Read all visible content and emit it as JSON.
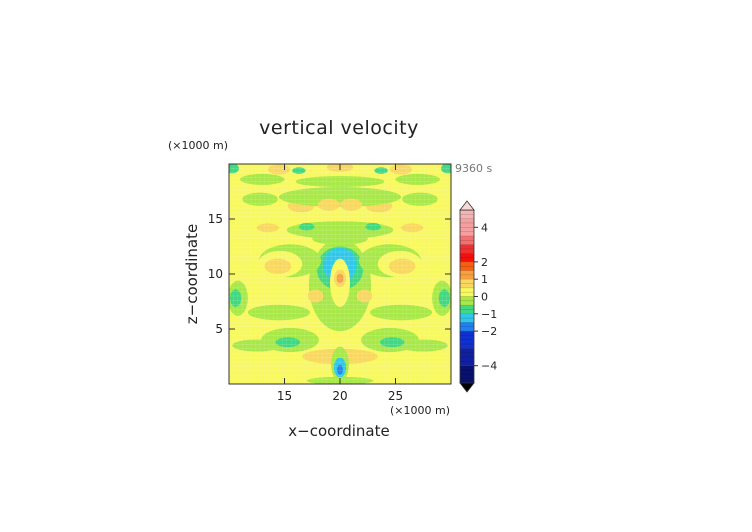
{
  "chart_data": {
    "type": "heatmap",
    "title": "vertical velocity",
    "time_label": "9360 s",
    "xlabel": "x−coordinate",
    "ylabel": "z−coordinate",
    "x_unit": "(×1000 m)",
    "y_unit": "(×1000 m)",
    "xlim": [
      10,
      30
    ],
    "ylim": [
      0,
      20
    ],
    "x_ticks": [
      15,
      20,
      25
    ],
    "y_ticks": [
      5,
      10,
      15
    ],
    "x_tick_labels": [
      "15",
      "20",
      "25"
    ],
    "y_tick_labels": [
      "5",
      "10",
      "15"
    ],
    "colorbar": {
      "range": [
        -5,
        5
      ],
      "tick_values": [
        4,
        2,
        1,
        0,
        -1,
        -2,
        -4
      ],
      "tick_labels": [
        "4",
        "2",
        "1",
        "0",
        "−1",
        "−2",
        "−4"
      ],
      "levels": [
        {
          "from": 4.5,
          "to": 5.0,
          "color": "#f4b4b4"
        },
        {
          "from": 3.5,
          "to": 4.5,
          "color": "#f4a0a0"
        },
        {
          "from": 3.0,
          "to": 3.5,
          "color": "#f47070"
        },
        {
          "from": 2.5,
          "to": 3.0,
          "color": "#f03030"
        },
        {
          "from": 2.0,
          "to": 2.5,
          "color": "#f01010"
        },
        {
          "from": 1.5,
          "to": 2.0,
          "color": "#f86010"
        },
        {
          "from": 1.0,
          "to": 1.5,
          "color": "#f8a040"
        },
        {
          "from": 0.5,
          "to": 1.0,
          "color": "#f8d860"
        },
        {
          "from": 0.0,
          "to": 0.5,
          "color": "#f8f860"
        },
        {
          "from": -0.5,
          "to": 0.0,
          "color": "#a8e848"
        },
        {
          "from": -1.0,
          "to": -0.5,
          "color": "#40d880"
        },
        {
          "from": -1.5,
          "to": -1.0,
          "color": "#30c8e8"
        },
        {
          "from": -2.0,
          "to": -1.5,
          "color": "#2080f0"
        },
        {
          "from": -3.0,
          "to": -2.0,
          "color": "#1030d0"
        },
        {
          "from": -4.0,
          "to": -3.0,
          "color": "#1020a0"
        },
        {
          "from": -5.0,
          "to": -4.0,
          "color": "#081070"
        }
      ]
    },
    "background_level_color": "#f8f860",
    "features": [
      {
        "shape": "ellipse",
        "cx": 20,
        "cy": 2.5,
        "rx": 3.4,
        "ry": 0.7,
        "value": 0.6
      },
      {
        "shape": "ellipse",
        "cx": 12.5,
        "cy": 3.5,
        "rx": 2.2,
        "ry": 0.55,
        "value": -0.3
      },
      {
        "shape": "ellipse",
        "cx": 27.5,
        "cy": 3.5,
        "rx": 2.2,
        "ry": 0.55,
        "value": -0.3
      },
      {
        "shape": "ellipse",
        "cx": 15.5,
        "cy": 4.0,
        "rx": 2.6,
        "ry": 1.1,
        "value": -0.3
      },
      {
        "shape": "ellipse",
        "cx": 24.5,
        "cy": 4.0,
        "rx": 2.6,
        "ry": 1.1,
        "value": -0.3
      },
      {
        "shape": "ellipse",
        "cx": 15.3,
        "cy": 3.8,
        "rx": 1.1,
        "ry": 0.45,
        "value": -0.9
      },
      {
        "shape": "ellipse",
        "cx": 24.7,
        "cy": 3.8,
        "rx": 1.1,
        "ry": 0.45,
        "value": -0.9
      },
      {
        "shape": "ellipse",
        "cx": 20,
        "cy": 1.8,
        "rx": 0.8,
        "ry": 1.6,
        "value": -0.3
      },
      {
        "shape": "ellipse",
        "cx": 20,
        "cy": 1.5,
        "rx": 0.55,
        "ry": 0.9,
        "value": -1.2
      },
      {
        "shape": "ellipse",
        "cx": 20,
        "cy": 1.3,
        "rx": 0.25,
        "ry": 0.45,
        "value": -1.7
      },
      {
        "shape": "ellipse",
        "cx": 10.8,
        "cy": 7.8,
        "rx": 0.9,
        "ry": 1.6,
        "value": -0.3
      },
      {
        "shape": "ellipse",
        "cx": 29.2,
        "cy": 7.8,
        "rx": 0.9,
        "ry": 1.6,
        "value": -0.3
      },
      {
        "shape": "ellipse",
        "cx": 10.6,
        "cy": 7.8,
        "rx": 0.5,
        "ry": 0.8,
        "value": -0.9
      },
      {
        "shape": "ellipse",
        "cx": 29.4,
        "cy": 7.8,
        "rx": 0.5,
        "ry": 0.8,
        "value": -0.9
      },
      {
        "shape": "ellipse",
        "cx": 14.5,
        "cy": 6.5,
        "rx": 2.8,
        "ry": 0.7,
        "value": -0.3
      },
      {
        "shape": "ellipse",
        "cx": 25.5,
        "cy": 6.5,
        "rx": 2.8,
        "ry": 0.7,
        "value": -0.3
      },
      {
        "shape": "ellipse",
        "cx": 20,
        "cy": 5.7,
        "rx": 1.6,
        "ry": 0.6,
        "value": -0.3
      },
      {
        "shape": "ellipse",
        "cx": 20,
        "cy": 9.0,
        "rx": 2.8,
        "ry": 4.2,
        "value": -0.3
      },
      {
        "shape": "ellipse",
        "cx": 17.8,
        "cy": 8.0,
        "rx": 0.7,
        "ry": 0.6,
        "value": 0.6
      },
      {
        "shape": "ellipse",
        "cx": 22.2,
        "cy": 8.0,
        "rx": 0.7,
        "ry": 0.6,
        "value": 0.6
      },
      {
        "shape": "ellipse",
        "cx": 20,
        "cy": 10.5,
        "rx": 2.1,
        "ry": 2.0,
        "value": -0.9
      },
      {
        "shape": "ellipse",
        "cx": 20,
        "cy": 10.8,
        "rx": 1.5,
        "ry": 1.6,
        "value": -1.2
      },
      {
        "shape": "ellipse",
        "cx": 20,
        "cy": 9.2,
        "rx": 0.9,
        "ry": 2.2,
        "value": 0.2
      },
      {
        "shape": "ellipse",
        "cx": 20,
        "cy": 9.6,
        "rx": 0.55,
        "ry": 0.8,
        "value": 0.7
      },
      {
        "shape": "ellipse",
        "cx": 20,
        "cy": 9.6,
        "rx": 0.3,
        "ry": 0.45,
        "value": 1.2
      },
      {
        "shape": "ellipse",
        "cx": 15.5,
        "cy": 11.2,
        "rx": 2.8,
        "ry": 1.5,
        "value": -0.3
      },
      {
        "shape": "ellipse",
        "cx": 24.5,
        "cy": 11.2,
        "rx": 2.8,
        "ry": 1.5,
        "value": -0.3
      },
      {
        "shape": "ellipse",
        "cx": 14.6,
        "cy": 10.9,
        "rx": 2.0,
        "ry": 1.2,
        "value": 0.2
      },
      {
        "shape": "ellipse",
        "cx": 25.4,
        "cy": 10.9,
        "rx": 2.0,
        "ry": 1.2,
        "value": 0.2
      },
      {
        "shape": "ellipse",
        "cx": 14.4,
        "cy": 10.7,
        "rx": 1.2,
        "ry": 0.7,
        "value": 0.7
      },
      {
        "shape": "ellipse",
        "cx": 25.6,
        "cy": 10.7,
        "rx": 1.2,
        "ry": 0.7,
        "value": 0.7
      },
      {
        "shape": "ellipse",
        "cx": 20,
        "cy": 14.0,
        "rx": 4.8,
        "ry": 0.8,
        "value": -0.3
      },
      {
        "shape": "ellipse",
        "cx": 13.5,
        "cy": 14.2,
        "rx": 1.0,
        "ry": 0.4,
        "value": 0.7
      },
      {
        "shape": "ellipse",
        "cx": 26.5,
        "cy": 14.2,
        "rx": 1.0,
        "ry": 0.4,
        "value": 0.7
      },
      {
        "shape": "ellipse",
        "cx": 17.0,
        "cy": 14.3,
        "rx": 0.7,
        "ry": 0.35,
        "value": -0.9
      },
      {
        "shape": "ellipse",
        "cx": 23.0,
        "cy": 14.3,
        "rx": 0.7,
        "ry": 0.35,
        "value": -0.9
      },
      {
        "shape": "ellipse",
        "cx": 20,
        "cy": 13.2,
        "rx": 2.5,
        "ry": 0.55,
        "value": -0.3
      },
      {
        "shape": "ellipse",
        "cx": 16.5,
        "cy": 16.2,
        "rx": 1.2,
        "ry": 0.6,
        "value": 0.7
      },
      {
        "shape": "ellipse",
        "cx": 23.5,
        "cy": 16.2,
        "rx": 1.2,
        "ry": 0.6,
        "value": 0.7
      },
      {
        "shape": "ellipse",
        "cx": 20,
        "cy": 17.0,
        "rx": 5.5,
        "ry": 0.9,
        "value": -0.3
      },
      {
        "shape": "ellipse",
        "cx": 12.8,
        "cy": 16.8,
        "rx": 1.6,
        "ry": 0.6,
        "value": -0.3
      },
      {
        "shape": "ellipse",
        "cx": 27.2,
        "cy": 16.8,
        "rx": 1.6,
        "ry": 0.6,
        "value": -0.3
      },
      {
        "shape": "ellipse",
        "cx": 19.0,
        "cy": 16.3,
        "rx": 1.0,
        "ry": 0.55,
        "value": 0.7
      },
      {
        "shape": "ellipse",
        "cx": 21.0,
        "cy": 16.3,
        "rx": 1.0,
        "ry": 0.55,
        "value": 0.7
      },
      {
        "shape": "ellipse",
        "cx": 20,
        "cy": 18.4,
        "rx": 4.0,
        "ry": 0.5,
        "value": -0.3
      },
      {
        "shape": "ellipse",
        "cx": 13.0,
        "cy": 18.6,
        "rx": 2.0,
        "ry": 0.5,
        "value": -0.3
      },
      {
        "shape": "ellipse",
        "cx": 27.0,
        "cy": 18.6,
        "rx": 2.0,
        "ry": 0.5,
        "value": -0.3
      },
      {
        "shape": "ellipse",
        "cx": 14.5,
        "cy": 19.5,
        "rx": 1.0,
        "ry": 0.45,
        "value": 0.7
      },
      {
        "shape": "ellipse",
        "cx": 25.5,
        "cy": 19.5,
        "rx": 1.0,
        "ry": 0.45,
        "value": 0.7
      },
      {
        "shape": "ellipse",
        "cx": 20,
        "cy": 19.7,
        "rx": 1.2,
        "ry": 0.4,
        "value": 0.7
      },
      {
        "shape": "ellipse",
        "cx": 10.3,
        "cy": 19.6,
        "rx": 0.6,
        "ry": 0.45,
        "value": -0.9
      },
      {
        "shape": "ellipse",
        "cx": 29.7,
        "cy": 19.6,
        "rx": 0.6,
        "ry": 0.45,
        "value": -0.9
      },
      {
        "shape": "ellipse",
        "cx": 16.3,
        "cy": 19.4,
        "rx": 0.6,
        "ry": 0.3,
        "value": -0.9
      },
      {
        "shape": "ellipse",
        "cx": 23.7,
        "cy": 19.4,
        "rx": 0.6,
        "ry": 0.3,
        "value": -0.9
      },
      {
        "shape": "ellipse",
        "cx": 20,
        "cy": 0.3,
        "rx": 3.0,
        "ry": 0.35,
        "value": -0.3
      }
    ]
  }
}
